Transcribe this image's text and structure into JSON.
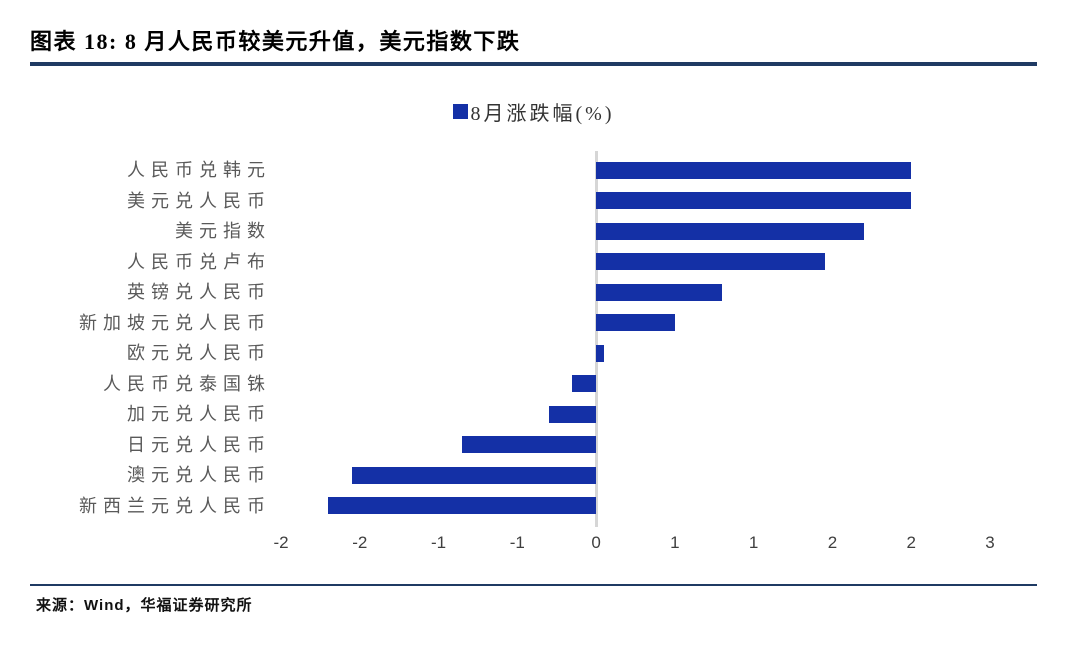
{
  "header": {
    "title": "图表 18:  8 月人民币较美元升值，美元指数下跌",
    "rule_color": "#1f3a63"
  },
  "legend": {
    "label": "8月涨跌幅(%)",
    "swatch_color": "#1430a6"
  },
  "chart_data": {
    "type": "bar",
    "orientation": "horizontal",
    "series_name": "8月涨跌幅(%)",
    "categories": [
      "人民币兑韩元",
      "美元兑人民币",
      "美元指数",
      "人民币兑卢布",
      "英镑兑人民币",
      "新加坡元兑人民币",
      "欧元兑人民币",
      "人民币兑泰国铢",
      "加元兑人民币",
      "日元兑人民币",
      "澳元兑人民币",
      "新西兰元兑人民币"
    ],
    "values": [
      2.0,
      2.0,
      1.7,
      1.45,
      0.8,
      0.5,
      0.05,
      -0.15,
      -0.3,
      -0.85,
      -1.55,
      -1.7
    ],
    "xlim": [
      -2,
      2.5
    ],
    "tick_values": [
      -2,
      -1.5,
      -1,
      -0.5,
      0,
      0.5,
      1,
      1.5,
      2,
      2.5
    ],
    "tick_labels": [
      "-2",
      "-2",
      "-1",
      "-1",
      "0",
      "1",
      "1",
      "2",
      "2",
      "3"
    ],
    "bar_color": "#1430a6",
    "axis_line_color": "#d6d6d6",
    "grid": false,
    "legend_position": "top-center"
  },
  "footer": {
    "source": "来源：Wind，华福证券研究所",
    "rule_color": "#1f3a63"
  }
}
